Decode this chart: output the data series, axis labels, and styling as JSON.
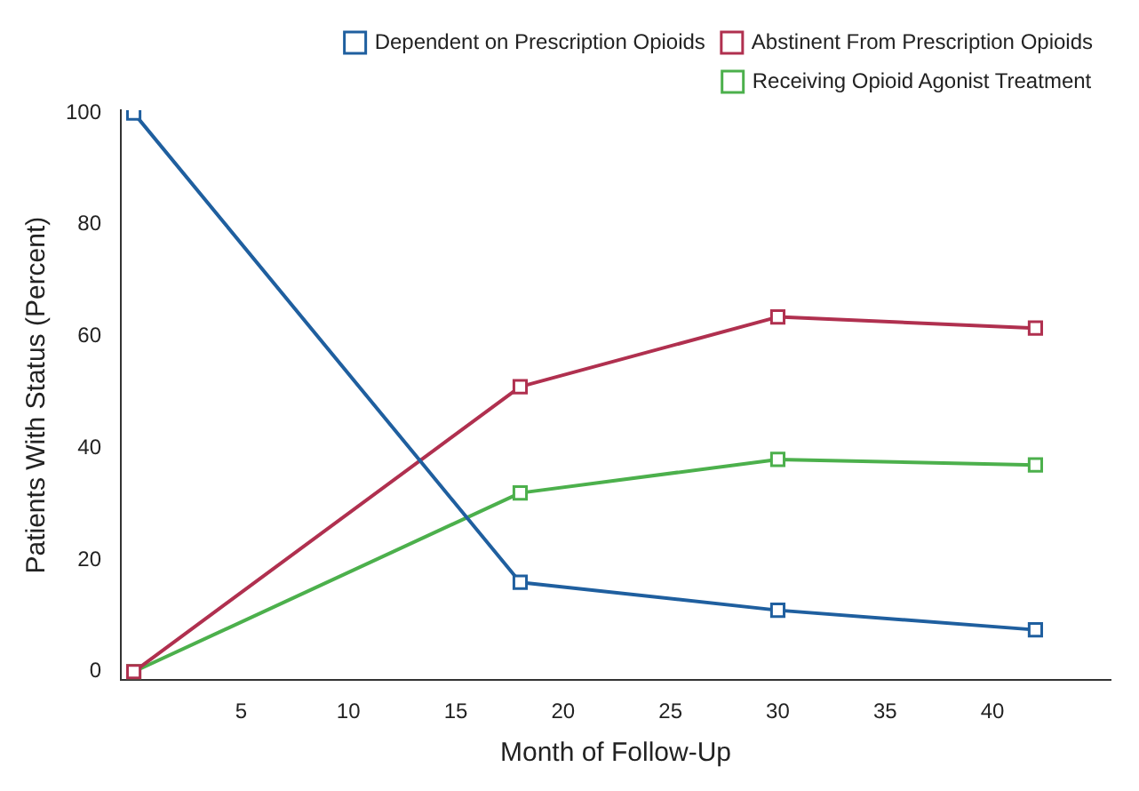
{
  "chart_data": {
    "type": "line",
    "xlabel": "Month of Follow-Up",
    "ylabel": "Patients With Status (Percent)",
    "x": [
      0,
      18,
      30,
      42
    ],
    "series": [
      {
        "name": "Dependent on Prescription Opioids",
        "color": "#1f5f9f",
        "values": [
          100,
          16,
          11,
          7.5
        ]
      },
      {
        "name": "Abstinent From Prescription Opioids",
        "color": "#b0304f",
        "values": [
          0,
          51,
          63.5,
          61.5
        ]
      },
      {
        "name": "Receiving Opioid Agonist Treatment",
        "color": "#4cb04c",
        "values": [
          0,
          32,
          38,
          37
        ]
      }
    ],
    "xlim": [
      -0.6,
      45.5
    ],
    "xticks": [
      5,
      10,
      15,
      20,
      25,
      30,
      35,
      40
    ],
    "ylim": [
      -1.5,
      100.5
    ],
    "yticks": [
      0,
      20,
      40,
      60,
      80,
      100
    ],
    "grid": false,
    "legend": "top right",
    "marker": "square",
    "line_style": "solid"
  }
}
